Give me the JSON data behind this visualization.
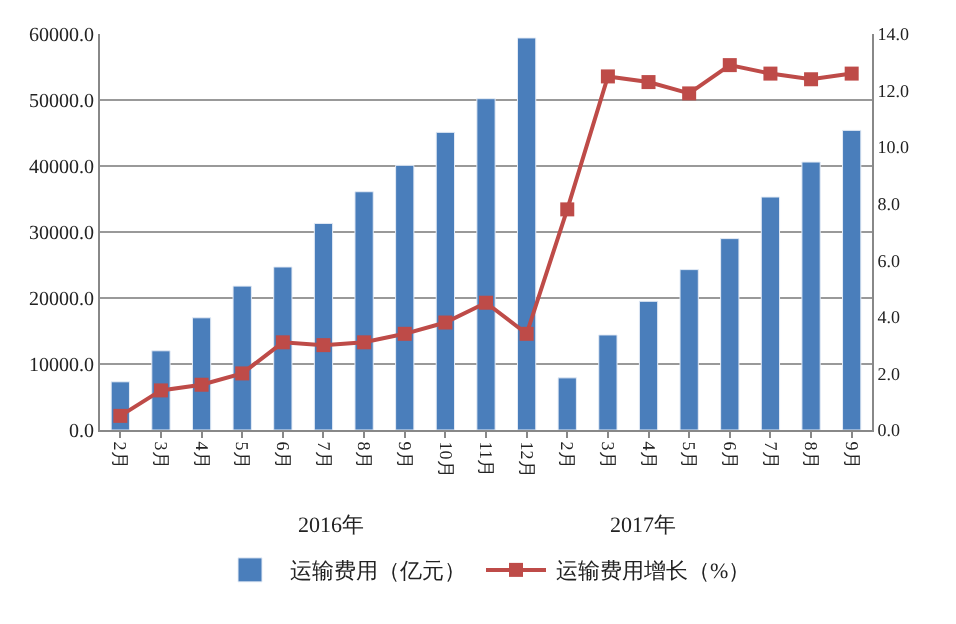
{
  "chart_data": {
    "type": "bar",
    "categories": [
      "2月",
      "3月",
      "4月",
      "5月",
      "6月",
      "7月",
      "8月",
      "9月",
      "10月",
      "11月",
      "12月",
      "2月",
      "3月",
      "4月",
      "5月",
      "6月",
      "7月",
      "8月",
      "9月"
    ],
    "series": [
      {
        "name": "运输费用（亿元）",
        "color": "#4a7ebb",
        "values": [
          7300,
          12000,
          17000,
          21800,
          24700,
          31300,
          36100,
          40100,
          45100,
          50200,
          59400,
          7900,
          14400,
          19500,
          24300,
          29000,
          35300,
          40600,
          45400
        ]
      },
      {
        "name": "运输费用增长（%）",
        "type": "line",
        "axis": "y2",
        "color": "#be4b48",
        "marker": "square",
        "values": [
          0.5,
          1.4,
          1.6,
          2.0,
          3.1,
          3.0,
          3.1,
          3.4,
          3.8,
          4.5,
          3.4,
          7.8,
          12.5,
          12.3,
          11.9,
          12.9,
          12.6,
          12.4,
          12.6
        ]
      }
    ],
    "ylim": [
      0,
      60000
    ],
    "yticks": [
      {
        "value": 0,
        "label": "0.0"
      },
      {
        "value": 10000,
        "label": "10000.0"
      },
      {
        "value": 20000,
        "label": "20000.0"
      },
      {
        "value": 30000,
        "label": "30000.0"
      },
      {
        "value": 40000,
        "label": "40000.0"
      },
      {
        "value": 50000,
        "label": "50000.0"
      },
      {
        "value": 60000,
        "label": "60000.0"
      }
    ],
    "y2lim": [
      0,
      14
    ],
    "y2ticks": [
      {
        "value": 0,
        "label": "0.0"
      },
      {
        "value": 2,
        "label": "2.0"
      },
      {
        "value": 4,
        "label": "4.0"
      },
      {
        "value": 6,
        "label": "6.0"
      },
      {
        "value": 8,
        "label": "8.0"
      },
      {
        "value": 10,
        "label": "10.0"
      },
      {
        "value": 12,
        "label": "12.0"
      },
      {
        "value": 14,
        "label": "14.0"
      }
    ],
    "annotations": [
      "2016年",
      "2017年"
    ],
    "grid": "y",
    "legend": "bottom"
  }
}
